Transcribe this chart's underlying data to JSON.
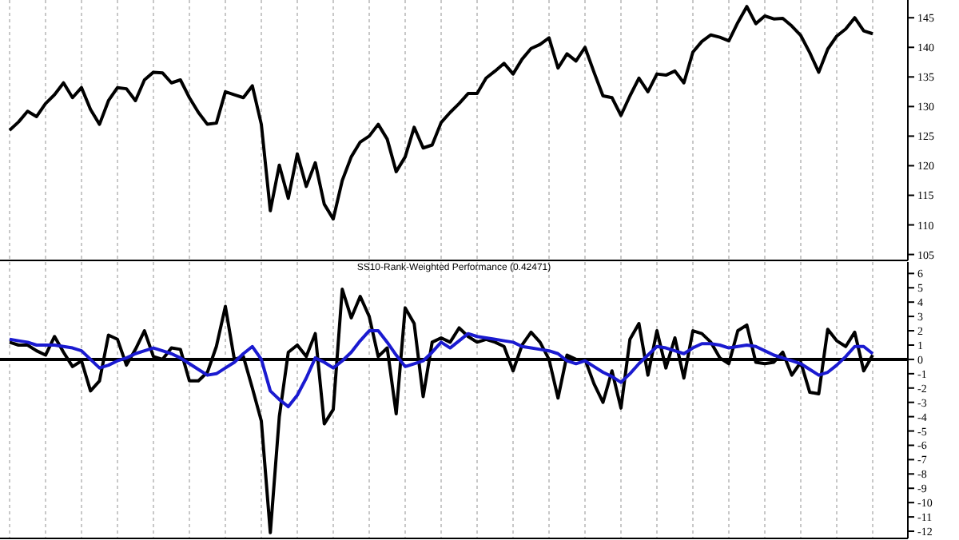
{
  "chart_data": [
    {
      "type": "line",
      "categories": [
        null,
        null,
        null,
        null,
        null,
        null,
        null,
        null,
        null,
        null,
        null,
        null,
        null,
        null,
        null,
        null,
        null,
        null,
        null,
        null,
        null,
        null,
        null,
        null,
        null,
        null,
        null,
        null,
        null,
        null,
        null,
        null,
        null,
        null,
        null,
        null,
        null,
        null,
        null,
        null,
        null,
        null,
        null,
        null,
        null,
        null,
        null,
        null,
        null,
        null,
        null,
        null,
        null,
        null,
        null,
        null,
        null,
        null,
        null,
        null,
        null,
        null,
        null,
        null,
        null,
        null,
        null,
        null,
        null,
        null,
        null,
        null,
        null,
        null,
        null,
        null,
        null,
        null,
        null,
        null,
        null,
        null,
        null,
        null,
        null,
        null,
        null,
        null,
        null,
        null,
        null,
        null,
        null,
        null,
        null,
        null,
        null
      ],
      "ylim": [
        104,
        148
      ],
      "yticks": [
        105,
        110,
        115,
        120,
        125,
        130,
        135,
        140,
        145
      ],
      "grid": "x",
      "tick_labels": "y",
      "series": [
        {
          "color": "#000000",
          "values": [
            126.0,
            127.4,
            129.2,
            128.3,
            130.5,
            132.0,
            134.0,
            131.5,
            133.2,
            129.5,
            127.0,
            131.0,
            133.2,
            133.0,
            131.0,
            134.5,
            135.8,
            135.7,
            134.0,
            134.5,
            131.5,
            129.0,
            127.0,
            127.2,
            132.5,
            132.0,
            131.5,
            133.5,
            127.0,
            112.4,
            120.1,
            114.5,
            122.0,
            116.5,
            120.5,
            113.5,
            111.0,
            117.5,
            121.5,
            124.0,
            125.0,
            127.0,
            124.5,
            119.0,
            121.5,
            126.5,
            123.0,
            123.5,
            127.3,
            129.0,
            130.5,
            132.2,
            132.2,
            134.8,
            136.0,
            137.3,
            135.5,
            138.0,
            139.8,
            140.5,
            141.6,
            136.5,
            138.9,
            137.7,
            140.0,
            135.8,
            131.8,
            131.5,
            128.5,
            131.8,
            134.8,
            132.5,
            135.5,
            135.3,
            136.0,
            134.0,
            139.2,
            141.0,
            142.1,
            141.7,
            141.1,
            144.2,
            146.9,
            144.0,
            145.3,
            144.8,
            144.9,
            143.6,
            142.0,
            139.1,
            135.8,
            139.7,
            141.9,
            143.1,
            145.0,
            142.8,
            142.3
          ]
        }
      ]
    },
    {
      "type": "line",
      "title": "SS10-Rank-Weighted Performance (0.42471)",
      "categories": [
        null,
        null,
        null,
        null,
        null,
        null,
        null,
        null,
        null,
        null,
        null,
        null,
        null,
        null,
        null,
        null,
        null,
        null,
        null,
        null,
        null,
        null,
        null,
        null,
        null,
        null,
        null,
        null,
        null,
        null,
        null,
        null,
        null,
        null,
        null,
        null,
        null,
        null,
        null,
        null,
        null,
        null,
        null,
        null,
        null,
        null,
        null,
        null,
        null,
        null,
        null,
        null,
        null,
        null,
        null,
        null,
        null,
        null,
        null,
        null,
        null,
        null,
        null,
        null,
        null,
        null,
        null,
        null,
        null,
        null,
        null,
        null,
        null,
        null,
        null,
        null,
        null,
        null,
        null,
        null,
        null,
        null,
        null,
        null,
        null,
        null,
        null,
        null,
        null,
        null,
        null,
        null,
        null,
        null,
        null,
        null,
        null
      ],
      "ylim": [
        -12.5,
        6.8
      ],
      "yticks": [
        -12,
        -11,
        -10,
        -9,
        -8,
        -7,
        -6,
        -5,
        -4,
        -3,
        -2,
        -1,
        0,
        1,
        2,
        3,
        4,
        5,
        6
      ],
      "grid": "x",
      "tick_labels": "y",
      "ref_lines": [
        {
          "axis": "y",
          "value": 0,
          "color": "#000000"
        }
      ],
      "series": [
        {
          "color": "#000000",
          "values": [
            1.2,
            1.0,
            1.0,
            0.6,
            0.3,
            1.6,
            0.5,
            -0.5,
            -0.1,
            -2.2,
            -1.5,
            1.7,
            1.4,
            -0.4,
            0.7,
            2.0,
            0.2,
            0.0,
            0.8,
            0.7,
            -1.5,
            -1.5,
            -0.9,
            0.9,
            3.7,
            0.0,
            0.2,
            -2.0,
            -4.3,
            -12.1,
            -4.0,
            0.5,
            1.0,
            0.2,
            1.8,
            -4.5,
            -3.5,
            4.9,
            2.9,
            4.4,
            3.0,
            0.2,
            0.8,
            -3.8,
            3.6,
            2.5,
            -2.6,
            1.2,
            1.5,
            1.2,
            2.2,
            1.6,
            1.2,
            1.4,
            1.2,
            0.9,
            -0.8,
            1.0,
            1.9,
            1.2,
            0.0,
            -2.7,
            0.3,
            0.0,
            0.0,
            -1.7,
            -3.0,
            -0.8,
            -3.4,
            1.4,
            2.5,
            -1.1,
            2.0,
            -0.6,
            1.5,
            -1.3,
            2.0,
            1.8,
            1.2,
            0.1,
            -0.3,
            2.0,
            2.4,
            -0.2,
            -0.3,
            -0.2,
            0.5,
            -1.1,
            -0.2,
            -2.3,
            -2.4,
            2.1,
            1.3,
            0.9,
            1.9,
            -0.8,
            0.3
          ]
        },
        {
          "color": "#1a1ad0",
          "values": [
            1.4,
            1.3,
            1.2,
            1.0,
            1.0,
            1.0,
            0.9,
            0.8,
            0.6,
            0.0,
            -0.6,
            -0.4,
            -0.1,
            0.1,
            0.4,
            0.6,
            0.8,
            0.6,
            0.4,
            0.1,
            -0.3,
            -0.7,
            -1.1,
            -1.0,
            -0.6,
            -0.2,
            0.4,
            0.9,
            0.0,
            -2.2,
            -2.8,
            -3.3,
            -2.5,
            -1.3,
            0.1,
            -0.2,
            -0.6,
            -0.1,
            0.5,
            1.3,
            2.0,
            2.0,
            1.2,
            0.3,
            -0.5,
            -0.3,
            -0.1,
            0.5,
            1.2,
            0.8,
            1.3,
            1.8,
            1.6,
            1.5,
            1.4,
            1.3,
            1.2,
            0.9,
            0.8,
            0.7,
            0.6,
            0.4,
            -0.1,
            -0.3,
            -0.1,
            -0.5,
            -0.9,
            -1.2,
            -1.6,
            -1.0,
            -0.3,
            0.3,
            0.9,
            0.8,
            0.6,
            0.4,
            0.8,
            1.1,
            1.1,
            1.0,
            0.8,
            0.9,
            1.0,
            0.9,
            0.6,
            0.3,
            0.1,
            -0.1,
            -0.3,
            -0.7,
            -1.1,
            -0.9,
            -0.4,
            0.2,
            0.9,
            0.9,
            0.4
          ]
        }
      ]
    }
  ]
}
